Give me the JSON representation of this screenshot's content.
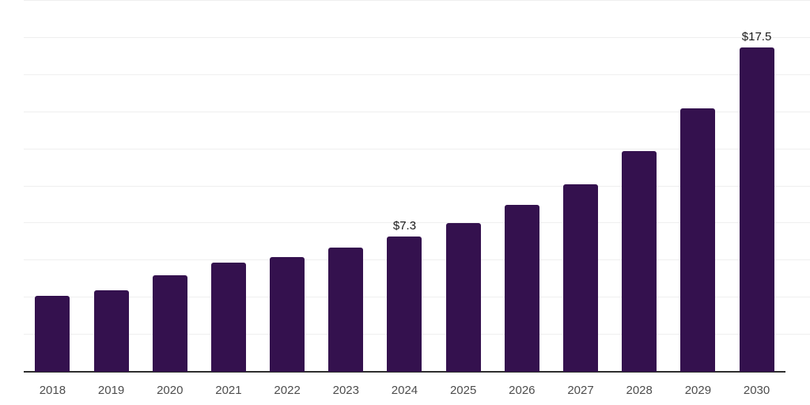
{
  "chart_data": {
    "type": "bar",
    "title": "",
    "xlabel": "",
    "ylabel": "",
    "categories": [
      "2018",
      "2019",
      "2020",
      "2021",
      "2022",
      "2023",
      "2024",
      "2025",
      "2026",
      "2027",
      "2028",
      "2029",
      "2030"
    ],
    "values": [
      4.1,
      4.4,
      5.2,
      5.9,
      6.2,
      6.7,
      7.3,
      8.0,
      9.0,
      10.1,
      11.9,
      14.2,
      17.5
    ],
    "value_labels": {
      "2024": "$7.3",
      "2030": "$17.5"
    },
    "ylim": [
      0,
      20
    ],
    "grid_step": 2,
    "grid": "horizontal",
    "y_tick_labels": [],
    "legend_position": "none",
    "colors": {
      "bar": "#34114e",
      "axis": "#2e2e2e",
      "grid": "#efefef",
      "tick_label": "#4d4d4d",
      "value_label": "#1a1a1a",
      "background": "#ffffff"
    }
  }
}
